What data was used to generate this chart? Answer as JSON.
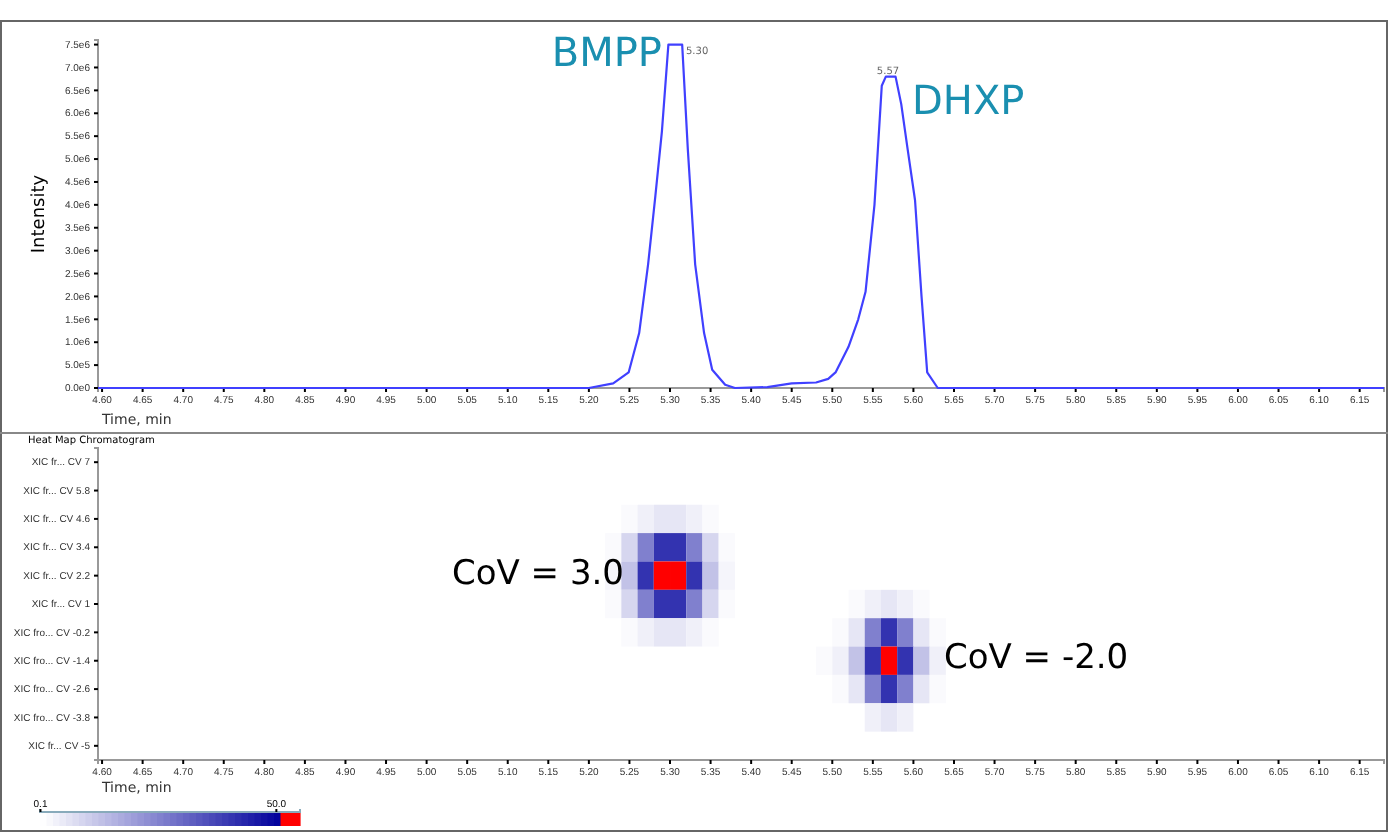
{
  "chart_data": [
    {
      "type": "line",
      "xlabel": "Time, min",
      "ylabel": "Intensity",
      "xlim": [
        4.595,
        6.18
      ],
      "ylim": [
        0,
        7600000
      ],
      "xticks": [
        {
          "value": 4.6,
          "label": "4.60"
        },
        {
          "value": 4.65,
          "label": "4.65"
        },
        {
          "value": 4.7,
          "label": "4.70"
        },
        {
          "value": 4.75,
          "label": "4.75"
        },
        {
          "value": 4.8,
          "label": "4.80"
        },
        {
          "value": 4.85,
          "label": "4.85"
        },
        {
          "value": 4.9,
          "label": "4.90"
        },
        {
          "value": 4.95,
          "label": "4.95"
        },
        {
          "value": 5.0,
          "label": "5.00"
        },
        {
          "value": 5.05,
          "label": "5.05"
        },
        {
          "value": 5.1,
          "label": "5.10"
        },
        {
          "value": 5.15,
          "label": "5.15"
        },
        {
          "value": 5.2,
          "label": "5.20"
        },
        {
          "value": 5.25,
          "label": "5.25"
        },
        {
          "value": 5.3,
          "label": "5.30"
        },
        {
          "value": 5.35,
          "label": "5.35"
        },
        {
          "value": 5.4,
          "label": "5.40"
        },
        {
          "value": 5.45,
          "label": "5.45"
        },
        {
          "value": 5.5,
          "label": "5.50"
        },
        {
          "value": 5.55,
          "label": "5.55"
        },
        {
          "value": 5.6,
          "label": "5.60"
        },
        {
          "value": 5.65,
          "label": "5.65"
        },
        {
          "value": 5.7,
          "label": "5.70"
        },
        {
          "value": 5.75,
          "label": "5.75"
        },
        {
          "value": 5.8,
          "label": "5.80"
        },
        {
          "value": 5.85,
          "label": "5.85"
        },
        {
          "value": 5.9,
          "label": "5.90"
        },
        {
          "value": 5.95,
          "label": "5.95"
        },
        {
          "value": 6.0,
          "label": "6.00"
        },
        {
          "value": 6.05,
          "label": "6.05"
        },
        {
          "value": 6.1,
          "label": "6.10"
        },
        {
          "value": 6.15,
          "label": "6.15"
        }
      ],
      "yticks": [
        {
          "value": 0,
          "label": "0.0e0"
        },
        {
          "value": 500000,
          "label": "5.0e5"
        },
        {
          "value": 1000000,
          "label": "1.0e6"
        },
        {
          "value": 1500000,
          "label": "1.5e6"
        },
        {
          "value": 2000000,
          "label": "2.0e6"
        },
        {
          "value": 2500000,
          "label": "2.5e6"
        },
        {
          "value": 3000000,
          "label": "3.0e6"
        },
        {
          "value": 3500000,
          "label": "3.5e6"
        },
        {
          "value": 4000000,
          "label": "4.0e6"
        },
        {
          "value": 4500000,
          "label": "4.5e6"
        },
        {
          "value": 5000000,
          "label": "5.0e6"
        },
        {
          "value": 5500000,
          "label": "5.5e6"
        },
        {
          "value": 6000000,
          "label": "6.0e6"
        },
        {
          "value": 6500000,
          "label": "6.5e6"
        },
        {
          "value": 7000000,
          "label": "7.0e6"
        },
        {
          "value": 7500000,
          "label": "7.5e6"
        }
      ],
      "marker": "none",
      "line_style": "solid",
      "series": [
        {
          "color": "#4040ff",
          "x": [
            4.595,
            5.0,
            5.2,
            5.23,
            5.249,
            5.262,
            5.273,
            5.282,
            5.29,
            5.298,
            5.315,
            5.322,
            5.331,
            5.342,
            5.352,
            5.368,
            5.38,
            5.42,
            5.45,
            5.48,
            5.495,
            5.504,
            5.52,
            5.532,
            5.541,
            5.552,
            5.561,
            5.566,
            5.578,
            5.585,
            5.593,
            5.602,
            5.61,
            5.617,
            5.63,
            5.7,
            6.18
          ],
          "values": [
            0,
            0,
            0,
            100000,
            340000,
            1200000,
            2700000,
            4200000,
            5600000,
            7500000,
            7500000,
            5200000,
            2700000,
            1200000,
            400000,
            70000,
            0,
            20000,
            100000,
            120000,
            200000,
            340000,
            900000,
            1500000,
            2100000,
            4000000,
            6600000,
            6800000,
            6800000,
            6200000,
            5200000,
            4100000,
            2000000,
            340000,
            0,
            0,
            0
          ]
        }
      ],
      "annotations": [
        "BMPP",
        "5.30",
        "DHXP",
        "5.57"
      ]
    },
    {
      "type": "heatmap",
      "title": "Heat Map Chromatogram",
      "xlabel": "Time, min",
      "xlim": [
        4.595,
        6.18
      ],
      "xticks": [
        {
          "value": 4.6,
          "label": "4.60"
        },
        {
          "value": 4.65,
          "label": "4.65"
        },
        {
          "value": 4.7,
          "label": "4.70"
        },
        {
          "value": 4.75,
          "label": "4.75"
        },
        {
          "value": 4.8,
          "label": "4.80"
        },
        {
          "value": 4.85,
          "label": "4.85"
        },
        {
          "value": 4.9,
          "label": "4.90"
        },
        {
          "value": 4.95,
          "label": "4.95"
        },
        {
          "value": 5.0,
          "label": "5.00"
        },
        {
          "value": 5.05,
          "label": "5.05"
        },
        {
          "value": 5.1,
          "label": "5.10"
        },
        {
          "value": 5.15,
          "label": "5.15"
        },
        {
          "value": 5.2,
          "label": "5.20"
        },
        {
          "value": 5.25,
          "label": "5.25"
        },
        {
          "value": 5.3,
          "label": "5.30"
        },
        {
          "value": 5.35,
          "label": "5.35"
        },
        {
          "value": 5.4,
          "label": "5.40"
        },
        {
          "value": 5.45,
          "label": "5.45"
        },
        {
          "value": 5.5,
          "label": "5.50"
        },
        {
          "value": 5.55,
          "label": "5.55"
        },
        {
          "value": 5.6,
          "label": "5.60"
        },
        {
          "value": 5.65,
          "label": "5.65"
        },
        {
          "value": 5.7,
          "label": "5.70"
        },
        {
          "value": 5.75,
          "label": "5.75"
        },
        {
          "value": 5.8,
          "label": "5.80"
        },
        {
          "value": 5.85,
          "label": "5.85"
        },
        {
          "value": 5.9,
          "label": "5.90"
        },
        {
          "value": 5.95,
          "label": "5.95"
        },
        {
          "value": 6.0,
          "label": "6.00"
        },
        {
          "value": 6.05,
          "label": "6.05"
        },
        {
          "value": 6.1,
          "label": "6.10"
        },
        {
          "value": 6.15,
          "label": "6.15"
        }
      ],
      "x": [
        5.21,
        5.23,
        5.25,
        5.27,
        5.29,
        5.31,
        5.33,
        5.35,
        5.37,
        5.39,
        5.41,
        5.43,
        5.45,
        5.47,
        5.49,
        5.51,
        5.53,
        5.55,
        5.57,
        5.59,
        5.61,
        5.63
      ],
      "y_categories": [
        "XIC fr... CV 7",
        "XIC fr... CV 5.8",
        "XIC fr... CV 4.6",
        "XIC fr... CV 3.4",
        "XIC fr... CV 2.2",
        "XIC fr... CV 1",
        "XIC fro... CV -0.2",
        "XIC fro... CV -1.4",
        "XIC fro... CV -2.6",
        "XIC fro... CV -3.8",
        "XIC fr... CV -5"
      ],
      "cells": [
        [
          0,
          0,
          0,
          0,
          0,
          0,
          0,
          0,
          0,
          0,
          0,
          0,
          0,
          0,
          0,
          0,
          0,
          0,
          0,
          0,
          0,
          0
        ],
        [
          0,
          0,
          0,
          0,
          0,
          0,
          0,
          0,
          0,
          0,
          0,
          0,
          0,
          0,
          0,
          0,
          0,
          0,
          0,
          0,
          0,
          0
        ],
        [
          0,
          0,
          1,
          3,
          5,
          5,
          3,
          1,
          0,
          0,
          0,
          0,
          0,
          0,
          0,
          0,
          0,
          0,
          0,
          0,
          0,
          0
        ],
        [
          0,
          1,
          8,
          25,
          40,
          40,
          25,
          8,
          1,
          0,
          0,
          0,
          0,
          0,
          0,
          0,
          0,
          0,
          0,
          0,
          0,
          0
        ],
        [
          0,
          2,
          12,
          40,
          50,
          50,
          40,
          12,
          2,
          0,
          0,
          0,
          0,
          0,
          0,
          0,
          0,
          0,
          0,
          0,
          0,
          0
        ],
        [
          0,
          1,
          8,
          25,
          40,
          40,
          25,
          8,
          1,
          0,
          0,
          0,
          0,
          0,
          0,
          0,
          1,
          3,
          5,
          3,
          1,
          0
        ],
        [
          0,
          0,
          1,
          3,
          5,
          5,
          3,
          1,
          0,
          0,
          0,
          0,
          0,
          0,
          0,
          1,
          5,
          25,
          40,
          25,
          5,
          1
        ],
        [
          0,
          0,
          0,
          0,
          0,
          0,
          0,
          0,
          0,
          0,
          0,
          0,
          0,
          0,
          1,
          3,
          12,
          40,
          50,
          40,
          12,
          3
        ],
        [
          0,
          0,
          0,
          0,
          0,
          0,
          0,
          0,
          0,
          0,
          0,
          0,
          0,
          0,
          0,
          1,
          5,
          25,
          40,
          25,
          5,
          1
        ],
        [
          0,
          0,
          0,
          0,
          0,
          0,
          0,
          0,
          0,
          0,
          0,
          0,
          0,
          0,
          0,
          0,
          0,
          3,
          5,
          3,
          0,
          0
        ],
        [
          0,
          0,
          0,
          0,
          0,
          0,
          0,
          0,
          0,
          0,
          0,
          0,
          0,
          0,
          0,
          0,
          0,
          0,
          0,
          0,
          0,
          0
        ]
      ],
      "colors": [
        "#ffffff",
        "#00009c",
        "#ff0000"
      ],
      "clim": [
        0,
        55
      ],
      "cticks": [
        {
          "value": 0.1,
          "label": "0.1"
        },
        {
          "value": 50,
          "label": "50.0"
        }
      ],
      "annotations": [
        "CoV = 3.0",
        "CoV = -2.0"
      ]
    }
  ]
}
